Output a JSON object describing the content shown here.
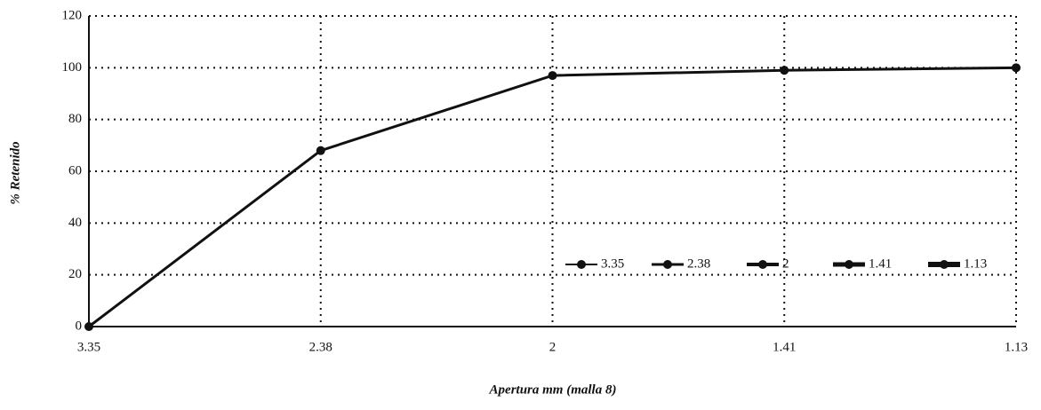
{
  "chart_data": {
    "type": "line",
    "x_label": "Apertura mm (malla 8)",
    "y_label": "% Retenido",
    "categories": [
      "3.35",
      "2.38",
      "2",
      "1.41",
      "1.13"
    ],
    "series": [
      {
        "name": "% Retenido",
        "color": "#111111",
        "values": [
          0,
          68,
          97,
          99,
          100
        ]
      }
    ],
    "legend_labels": [
      "3.35",
      "2.38",
      "2",
      "1.41",
      "1.13"
    ],
    "ylim": [
      0,
      120
    ],
    "yticks": [
      0,
      20,
      40,
      60,
      80,
      100,
      120
    ],
    "grid": true
  }
}
